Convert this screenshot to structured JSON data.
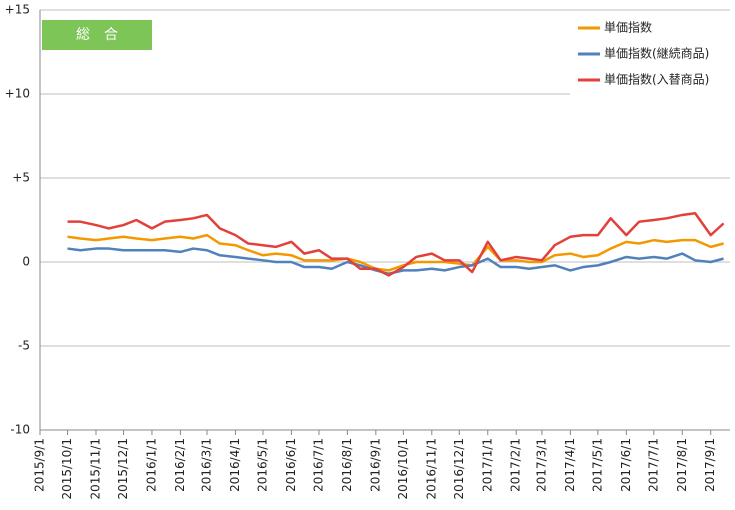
{
  "chart_data": {
    "type": "line",
    "title": "総　合",
    "x": [
      "2015/10/1",
      "2015/10/15",
      "2015/11/1",
      "2015/11/15",
      "2015/12/1",
      "2015/12/15",
      "2016/1/1",
      "2016/1/15",
      "2016/2/1",
      "2016/2/15",
      "2016/3/1",
      "2016/3/15",
      "2016/4/1",
      "2016/4/15",
      "2016/5/1",
      "2016/5/15",
      "2016/6/1",
      "2016/6/15",
      "2016/7/1",
      "2016/7/15",
      "2016/8/1",
      "2016/8/15",
      "2016/9/1",
      "2016/9/15",
      "2016/10/1",
      "2016/10/15",
      "2016/11/1",
      "2016/11/15",
      "2016/12/1",
      "2016/12/15",
      "2017/1/1",
      "2017/1/15",
      "2017/2/1",
      "2017/2/15",
      "2017/3/1",
      "2017/3/15",
      "2017/4/1",
      "2017/4/15",
      "2017/5/1",
      "2017/5/15",
      "2017/6/1",
      "2017/6/15",
      "2017/7/1",
      "2017/7/15",
      "2017/8/1",
      "2017/8/15",
      "2017/9/1",
      "2017/9/15"
    ],
    "series": [
      {
        "name": "単価指数",
        "color": "#f39800",
        "values": [
          1.5,
          1.4,
          1.3,
          1.4,
          1.5,
          1.4,
          1.3,
          1.4,
          1.5,
          1.4,
          1.6,
          1.1,
          1.0,
          0.7,
          0.4,
          0.5,
          0.4,
          0.1,
          0.1,
          0.1,
          0.2,
          0.0,
          -0.4,
          -0.5,
          -0.2,
          0.0,
          0.0,
          0.0,
          -0.1,
          -0.2,
          0.9,
          0.1,
          0.1,
          0.0,
          0.0,
          0.4,
          0.5,
          0.3,
          0.4,
          0.8,
          1.2,
          1.1,
          1.3,
          1.2,
          1.3,
          1.3,
          0.9,
          1.1
        ]
      },
      {
        "name": "単価指数(継続商品)",
        "color": "#4f81bd",
        "values": [
          0.8,
          0.7,
          0.8,
          0.8,
          0.7,
          0.7,
          0.7,
          0.7,
          0.6,
          0.8,
          0.7,
          0.4,
          0.3,
          0.2,
          0.1,
          0.0,
          0.0,
          -0.3,
          -0.3,
          -0.4,
          0.0,
          -0.2,
          -0.5,
          -0.7,
          -0.5,
          -0.5,
          -0.4,
          -0.5,
          -0.3,
          -0.2,
          0.2,
          -0.3,
          -0.3,
          -0.4,
          -0.3,
          -0.2,
          -0.5,
          -0.3,
          -0.2,
          0.0,
          0.3,
          0.2,
          0.3,
          0.2,
          0.5,
          0.1,
          0.0,
          0.2
        ]
      },
      {
        "name": "単価指数(入替商品)",
        "color": "#e3403a",
        "values": [
          2.4,
          2.4,
          2.2,
          2.0,
          2.2,
          2.5,
          2.0,
          2.4,
          2.5,
          2.6,
          2.8,
          2.0,
          1.6,
          1.1,
          1.0,
          0.9,
          1.2,
          0.5,
          0.7,
          0.2,
          0.2,
          -0.4,
          -0.4,
          -0.8,
          -0.3,
          0.3,
          0.5,
          0.1,
          0.1,
          -0.6,
          1.2,
          0.1,
          0.3,
          0.2,
          0.1,
          1.0,
          1.5,
          1.6,
          1.6,
          2.6,
          1.6,
          2.4,
          2.5,
          2.6,
          2.8,
          2.9,
          1.6,
          2.3
        ]
      }
    ],
    "xlim": [
      "2015/9/1",
      "2017/9/22"
    ],
    "xticks": [
      "2015/9/1",
      "2015/10/1",
      "2015/11/1",
      "2015/12/1",
      "2016/1/1",
      "2016/2/1",
      "2016/3/1",
      "2016/4/1",
      "2016/5/1",
      "2016/6/1",
      "2016/7/1",
      "2016/8/1",
      "2016/9/1",
      "2016/10/1",
      "2016/11/1",
      "2016/12/1",
      "2017/1/1",
      "2017/2/1",
      "2017/3/1",
      "2017/4/1",
      "2017/5/1",
      "2017/6/1",
      "2017/7/1",
      "2017/8/1",
      "2017/9/1"
    ],
    "ylim": [
      -10,
      15
    ],
    "yticks": [
      -10,
      -5,
      0,
      {
        "value": 5,
        "label": "+5"
      },
      {
        "value": 10,
        "label": "+10"
      },
      {
        "value": 15,
        "label": "+15"
      }
    ],
    "grid": true,
    "legend": "top-right"
  }
}
